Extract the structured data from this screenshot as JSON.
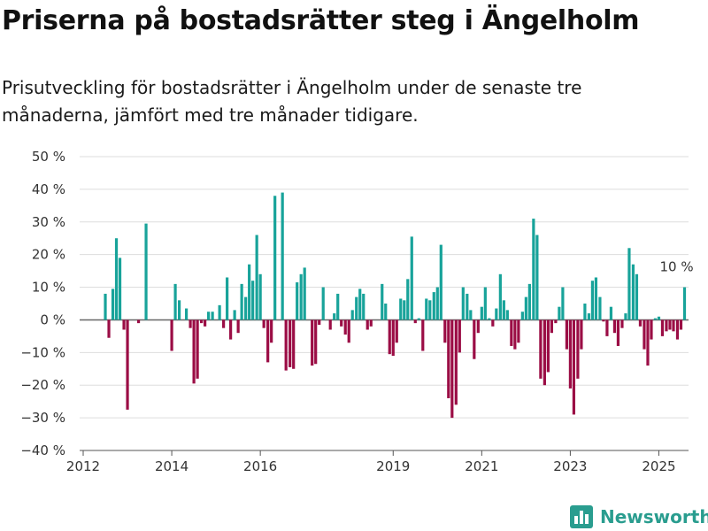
{
  "title": "Priserna på bostadsrätter steg i Ängelholm",
  "subtitle": "Prisutveckling för bostadsrätter i Ängelholm under de senaste tre månaderna, jämfört med tre månader tidigare.",
  "brand": {
    "name": "Newsworthy",
    "icon": "bar-chart-icon"
  },
  "colors": {
    "positive": "#18a39a",
    "negative": "#9b0d45",
    "grid": "#dddddd",
    "axis": "#555555"
  },
  "chart_data": {
    "type": "bar",
    "title": "",
    "xlabel": "",
    "ylabel": "",
    "x_tick_labels": [
      "2012",
      "2014",
      "2016",
      "2019",
      "2021",
      "2023",
      "2025"
    ],
    "x_ticks": [
      2012.0,
      2014.0,
      2016.0,
      2019.0,
      2021.0,
      2023.0,
      2025.0
    ],
    "xlim": [
      2011.92,
      2025.67
    ],
    "y_tick_labels": [
      "50 %",
      "40 %",
      "30 %",
      "20 %",
      "10 %",
      "0 %",
      "−10 %",
      "−20 %",
      "−30 %",
      "−40 %"
    ],
    "y_ticks": [
      50,
      40,
      30,
      20,
      10,
      0,
      -10,
      -20,
      -30,
      -40
    ],
    "ylim": [
      -40,
      50
    ],
    "grid": "horizontal",
    "legend": "none",
    "annotation": {
      "label": "10 %",
      "x": 2025.5,
      "y": 10
    },
    "series": [
      {
        "values": [
          [
            2012.5,
            8
          ],
          [
            2012.58,
            -5.5
          ],
          [
            2012.67,
            9.5
          ],
          [
            2012.75,
            25
          ],
          [
            2012.83,
            19
          ],
          [
            2012.92,
            -3
          ],
          [
            2013.0,
            -27.5
          ],
          [
            2013.25,
            -1
          ],
          [
            2013.42,
            29.5
          ],
          [
            2014.0,
            -9.5
          ],
          [
            2014.08,
            11
          ],
          [
            2014.17,
            6
          ],
          [
            2014.33,
            3.5
          ],
          [
            2014.42,
            -2.5
          ],
          [
            2014.5,
            -19.5
          ],
          [
            2014.58,
            -18
          ],
          [
            2014.67,
            -1
          ],
          [
            2014.75,
            -2
          ],
          [
            2014.83,
            2.5
          ],
          [
            2014.92,
            2.5
          ],
          [
            2015.08,
            4.5
          ],
          [
            2015.17,
            -2.5
          ],
          [
            2015.25,
            13
          ],
          [
            2015.33,
            -6
          ],
          [
            2015.42,
            3
          ],
          [
            2015.5,
            -4
          ],
          [
            2015.58,
            11
          ],
          [
            2015.67,
            7
          ],
          [
            2015.75,
            17
          ],
          [
            2015.83,
            12
          ],
          [
            2015.92,
            26
          ],
          [
            2016.0,
            14
          ],
          [
            2016.08,
            -2.5
          ],
          [
            2016.17,
            -13
          ],
          [
            2016.25,
            -7
          ],
          [
            2016.33,
            38
          ],
          [
            2016.5,
            39
          ],
          [
            2016.58,
            -15.5
          ],
          [
            2016.67,
            -14.5
          ],
          [
            2016.75,
            -15
          ],
          [
            2016.83,
            11.5
          ],
          [
            2016.92,
            14
          ],
          [
            2017.0,
            16
          ],
          [
            2017.17,
            -14
          ],
          [
            2017.25,
            -13.5
          ],
          [
            2017.33,
            -1.5
          ],
          [
            2017.42,
            10
          ],
          [
            2017.58,
            -3
          ],
          [
            2017.67,
            2
          ],
          [
            2017.75,
            8
          ],
          [
            2017.83,
            -2
          ],
          [
            2017.92,
            -4.5
          ],
          [
            2018.0,
            -7
          ],
          [
            2018.08,
            3
          ],
          [
            2018.17,
            7
          ],
          [
            2018.25,
            9.5
          ],
          [
            2018.33,
            8
          ],
          [
            2018.42,
            -3
          ],
          [
            2018.5,
            -2
          ],
          [
            2018.75,
            11
          ],
          [
            2018.83,
            5
          ],
          [
            2018.92,
            -10.5
          ],
          [
            2019.0,
            -11
          ],
          [
            2019.08,
            -7
          ],
          [
            2019.17,
            6.5
          ],
          [
            2019.25,
            6
          ],
          [
            2019.33,
            12.5
          ],
          [
            2019.42,
            25.5
          ],
          [
            2019.5,
            -1
          ],
          [
            2019.58,
            0.5
          ],
          [
            2019.67,
            -9.5
          ],
          [
            2019.75,
            6.5
          ],
          [
            2019.83,
            6
          ],
          [
            2019.92,
            8.5
          ],
          [
            2020.0,
            10
          ],
          [
            2020.08,
            23
          ],
          [
            2020.17,
            -7
          ],
          [
            2020.25,
            -24
          ],
          [
            2020.33,
            -30
          ],
          [
            2020.42,
            -26
          ],
          [
            2020.5,
            -10
          ],
          [
            2020.58,
            10
          ],
          [
            2020.67,
            8
          ],
          [
            2020.75,
            3
          ],
          [
            2020.83,
            -12
          ],
          [
            2020.92,
            -4
          ],
          [
            2021.0,
            4
          ],
          [
            2021.08,
            10
          ],
          [
            2021.17,
            0.5
          ],
          [
            2021.25,
            -2
          ],
          [
            2021.33,
            3.5
          ],
          [
            2021.42,
            14
          ],
          [
            2021.5,
            6
          ],
          [
            2021.58,
            3
          ],
          [
            2021.67,
            -8
          ],
          [
            2021.75,
            -9
          ],
          [
            2021.83,
            -7
          ],
          [
            2021.92,
            2.5
          ],
          [
            2022.0,
            7
          ],
          [
            2022.08,
            11
          ],
          [
            2022.17,
            31
          ],
          [
            2022.25,
            26
          ],
          [
            2022.33,
            -18
          ],
          [
            2022.42,
            -20
          ],
          [
            2022.5,
            -16
          ],
          [
            2022.58,
            -4
          ],
          [
            2022.67,
            -1
          ],
          [
            2022.75,
            4
          ],
          [
            2022.83,
            10
          ],
          [
            2022.92,
            -9
          ],
          [
            2023.0,
            -21
          ],
          [
            2023.08,
            -29
          ],
          [
            2023.17,
            -18
          ],
          [
            2023.25,
            -9
          ],
          [
            2023.33,
            5
          ],
          [
            2023.42,
            2
          ],
          [
            2023.5,
            12
          ],
          [
            2023.58,
            13
          ],
          [
            2023.67,
            7
          ],
          [
            2023.75,
            -0.5
          ],
          [
            2023.83,
            -5
          ],
          [
            2023.92,
            4
          ],
          [
            2024.0,
            -4
          ],
          [
            2024.08,
            -8
          ],
          [
            2024.17,
            -2.5
          ],
          [
            2024.25,
            2
          ],
          [
            2024.33,
            22
          ],
          [
            2024.42,
            17
          ],
          [
            2024.5,
            14
          ],
          [
            2024.58,
            -2
          ],
          [
            2024.67,
            -9
          ],
          [
            2024.75,
            -14
          ],
          [
            2024.83,
            -6
          ],
          [
            2024.92,
            0.5
          ],
          [
            2025.0,
            1
          ],
          [
            2025.08,
            -5
          ],
          [
            2025.17,
            -3.5
          ],
          [
            2025.25,
            -3
          ],
          [
            2025.33,
            -3.5
          ],
          [
            2025.42,
            -6
          ],
          [
            2025.5,
            -3
          ],
          [
            2025.58,
            10
          ]
        ]
      }
    ]
  }
}
